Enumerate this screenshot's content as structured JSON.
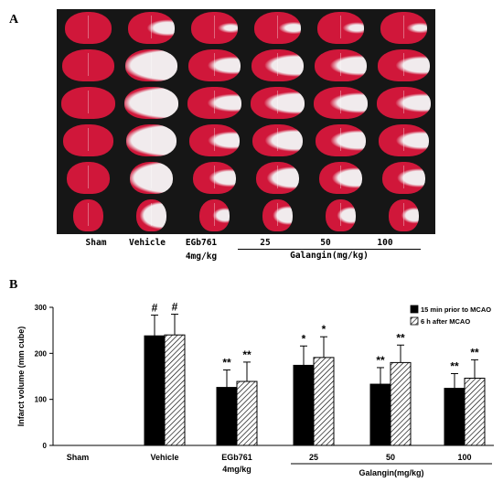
{
  "panel_a": {
    "letter": "A",
    "groups": [
      {
        "label": "Sham",
        "sublabel": ""
      },
      {
        "label": "Vehicle",
        "sublabel": ""
      },
      {
        "label": "EGb761",
        "sublabel": "4mg/kg"
      },
      {
        "label": "25",
        "sublabel": ""
      },
      {
        "label": "50",
        "sublabel": ""
      },
      {
        "label": "100",
        "sublabel": ""
      }
    ],
    "galangin_label": "Galangin(mg/kg)",
    "colors": {
      "stain": "#d0173a",
      "infarct": "#f1ebed",
      "background": "#161616"
    }
  },
  "panel_b": {
    "letter": "B"
  },
  "chart_data": {
    "type": "bar",
    "ylabel": "Infarct volume (mm cube)",
    "ylim": [
      0,
      300
    ],
    "yticks": [
      0,
      100,
      200,
      300
    ],
    "categories": [
      "Sham",
      "Vehicle",
      "EGb761",
      "25",
      "50",
      "100"
    ],
    "category_sublabels": [
      "",
      "",
      "4mg/kg",
      "",
      "",
      ""
    ],
    "group_label": "Galangin(mg/kg)",
    "legend_position": "top-right",
    "series": [
      {
        "name": "15 min prior to MCAO",
        "pattern": "solid",
        "color": "#000000",
        "values": [
          0,
          238,
          126,
          174,
          133,
          124
        ],
        "errors": [
          0,
          45,
          38,
          42,
          36,
          32
        ],
        "markers": [
          "",
          "#",
          "**",
          "*",
          "**",
          "**"
        ]
      },
      {
        "name": "6 h after MCAO",
        "pattern": "hatched",
        "color": "#000000",
        "values": [
          0,
          240,
          139,
          191,
          180,
          146
        ],
        "errors": [
          0,
          45,
          42,
          45,
          38,
          40
        ],
        "markers": [
          "",
          "#",
          "**",
          "*",
          "**",
          "**"
        ]
      }
    ]
  }
}
